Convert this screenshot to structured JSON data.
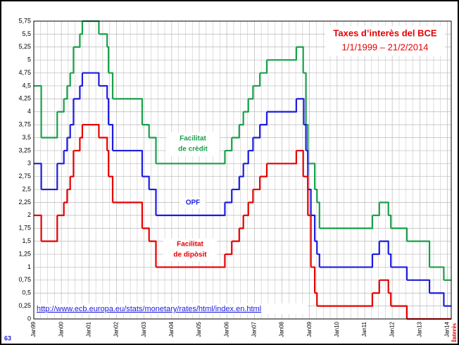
{
  "chart_data": {
    "type": "step",
    "title": "Taxes d’interès del BCE",
    "subtitle": "1/1/1999 – 21/2/2014",
    "source": "http://www.ecb.europa.eu/stats/monetary/rates/html/index.en.html",
    "page_number": "63",
    "side_label": "Interès",
    "annotations": [
      "Facilitat",
      "de crèdit",
      "OPF",
      "Facilitat",
      "de dipòsit"
    ],
    "grid": true,
    "xlim": [
      1999,
      2014.14
    ],
    "xticks": [
      {
        "value": 1999,
        "label": "Jan99"
      },
      {
        "value": 2000,
        "label": "Jan00"
      },
      {
        "value": 2001,
        "label": "Jan01"
      },
      {
        "value": 2002,
        "label": "Jan02"
      },
      {
        "value": 2003,
        "label": "Jan03"
      },
      {
        "value": 2004,
        "label": "Jan04"
      },
      {
        "value": 2005,
        "label": "Jan05"
      },
      {
        "value": 2006,
        "label": "Jan06"
      },
      {
        "value": 2007,
        "label": "Jan07"
      },
      {
        "value": 2008,
        "label": "Jan08"
      },
      {
        "value": 2009,
        "label": "Jan09"
      },
      {
        "value": 2010,
        "label": "Jan10"
      },
      {
        "value": 2011,
        "label": "Jan11"
      },
      {
        "value": 2012,
        "label": "Jan12"
      },
      {
        "value": 2013,
        "label": "Jan13"
      },
      {
        "value": 2014,
        "label": "Jan14"
      }
    ],
    "minor_xticks": [
      1999.25,
      1999.5,
      1999.75,
      2000.25,
      2000.5,
      2000.75,
      2001.25,
      2001.5,
      2001.75,
      2002.25,
      2002.5,
      2002.75,
      2003.25,
      2003.5,
      2003.75,
      2004.25,
      2004.5,
      2004.75,
      2005.25,
      2005.5,
      2005.75,
      2006.25,
      2006.5,
      2006.75,
      2007.25,
      2007.5,
      2007.75,
      2008.25,
      2008.5,
      2008.75,
      2009.25,
      2009.5,
      2009.75,
      2010.25,
      2010.5,
      2010.75,
      2011.25,
      2011.5,
      2011.75,
      2012.25,
      2012.5,
      2012.75,
      2013.25,
      2013.5,
      2013.75
    ],
    "ylim": [
      0,
      5.75
    ],
    "yticks": [
      0,
      {
        "value": 0.25,
        "label": "0,25"
      },
      {
        "value": 0.5,
        "label": "0,5"
      },
      {
        "value": 0.75,
        "label": "0,75"
      },
      1,
      {
        "value": 1.25,
        "label": "1,25"
      },
      {
        "value": 1.5,
        "label": "1,5"
      },
      {
        "value": 1.75,
        "label": "1,75"
      },
      2,
      {
        "value": 2.25,
        "label": "2,25"
      },
      {
        "value": 2.5,
        "label": "2,5"
      },
      {
        "value": 2.75,
        "label": "2,75"
      },
      3,
      {
        "value": 3.25,
        "label": "3,25"
      },
      {
        "value": 3.5,
        "label": "3,5"
      },
      {
        "value": 3.75,
        "label": "3,75"
      },
      4,
      {
        "value": 4.25,
        "label": "4,25"
      },
      {
        "value": 4.5,
        "label": "4,5"
      },
      {
        "value": 4.75,
        "label": "4,75"
      },
      5,
      {
        "value": 5.25,
        "label": "5,25"
      },
      {
        "value": 5.5,
        "label": "5,5"
      },
      {
        "value": 5.75,
        "label": "5,75"
      }
    ],
    "series": [
      {
        "color": "#18a04a",
        "x": [
          1999,
          1999.27,
          1999.85,
          2000.09,
          2000.21,
          2000.32,
          2000.44,
          2000.67,
          2000.76,
          2001.36,
          2001.66,
          2001.71,
          2001.86,
          2002.93,
          2003.18,
          2003.43,
          2005.93,
          2006.18,
          2006.45,
          2006.6,
          2006.78,
          2006.95,
          2007.2,
          2007.45,
          2008.52,
          2008.77,
          2008.87,
          2008.94,
          2009.05,
          2009.19,
          2009.27,
          2009.36,
          2011.28,
          2011.53,
          2011.86,
          2011.95,
          2012.53,
          2013.35,
          2013.87,
          2014.14
        ],
        "values": [
          4.5,
          3.5,
          4,
          4.25,
          4.5,
          4.75,
          5.25,
          5.5,
          5.75,
          5.5,
          5.25,
          4.75,
          4.25,
          3.75,
          3.5,
          3,
          3.25,
          3.5,
          3.75,
          4,
          4.25,
          4.5,
          4.75,
          5,
          5.25,
          4.75,
          3.75,
          3,
          3,
          2.5,
          2.25,
          1.75,
          2,
          2.25,
          2,
          1.75,
          1.5,
          1,
          0.75,
          0.75
        ]
      },
      {
        "color": "#1c1ce0",
        "x": [
          1999,
          1999.27,
          1999.85,
          2000.09,
          2000.21,
          2000.32,
          2000.44,
          2000.67,
          2000.76,
          2001.36,
          2001.66,
          2001.71,
          2001.86,
          2002.93,
          2003.18,
          2003.43,
          2005.93,
          2006.18,
          2006.45,
          2006.6,
          2006.78,
          2006.95,
          2007.2,
          2007.45,
          2008.52,
          2008.79,
          2008.87,
          2008.94,
          2009.05,
          2009.19,
          2009.27,
          2009.36,
          2011.28,
          2011.53,
          2011.86,
          2011.95,
          2012.53,
          2013.35,
          2013.87,
          2014.14
        ],
        "values": [
          3,
          2.5,
          3,
          3.25,
          3.5,
          3.75,
          4.25,
          4.5,
          4.75,
          4.5,
          4.25,
          3.75,
          3.25,
          2.75,
          2.5,
          2,
          2.25,
          2.5,
          2.75,
          3,
          3.25,
          3.5,
          3.75,
          4,
          4.25,
          3.75,
          3.25,
          2.5,
          2,
          1.5,
          1.25,
          1,
          1.25,
          1.5,
          1.25,
          1,
          0.75,
          0.5,
          0.25,
          0.25
        ]
      },
      {
        "color": "#e60000",
        "x": [
          1999,
          1999.27,
          1999.85,
          2000.09,
          2000.21,
          2000.32,
          2000.44,
          2000.67,
          2000.76,
          2001.36,
          2001.66,
          2001.71,
          2001.86,
          2002.93,
          2003.18,
          2003.43,
          2005.93,
          2006.18,
          2006.45,
          2006.6,
          2006.78,
          2006.95,
          2007.2,
          2007.45,
          2008.52,
          2008.77,
          2008.94,
          2009.05,
          2009.19,
          2009.27,
          2011.28,
          2011.53,
          2011.86,
          2011.95,
          2012.53,
          2014.14
        ],
        "values": [
          2,
          1.5,
          2,
          2.25,
          2.5,
          2.75,
          3.25,
          3.5,
          3.75,
          3.5,
          3.25,
          2.75,
          2.25,
          1.75,
          1.5,
          1,
          1.25,
          1.5,
          1.75,
          2,
          2.25,
          2.5,
          2.75,
          3,
          3.25,
          2.75,
          2,
          1,
          0.5,
          0.25,
          0.5,
          0.75,
          0.5,
          0.25,
          0,
          0
        ]
      }
    ]
  }
}
